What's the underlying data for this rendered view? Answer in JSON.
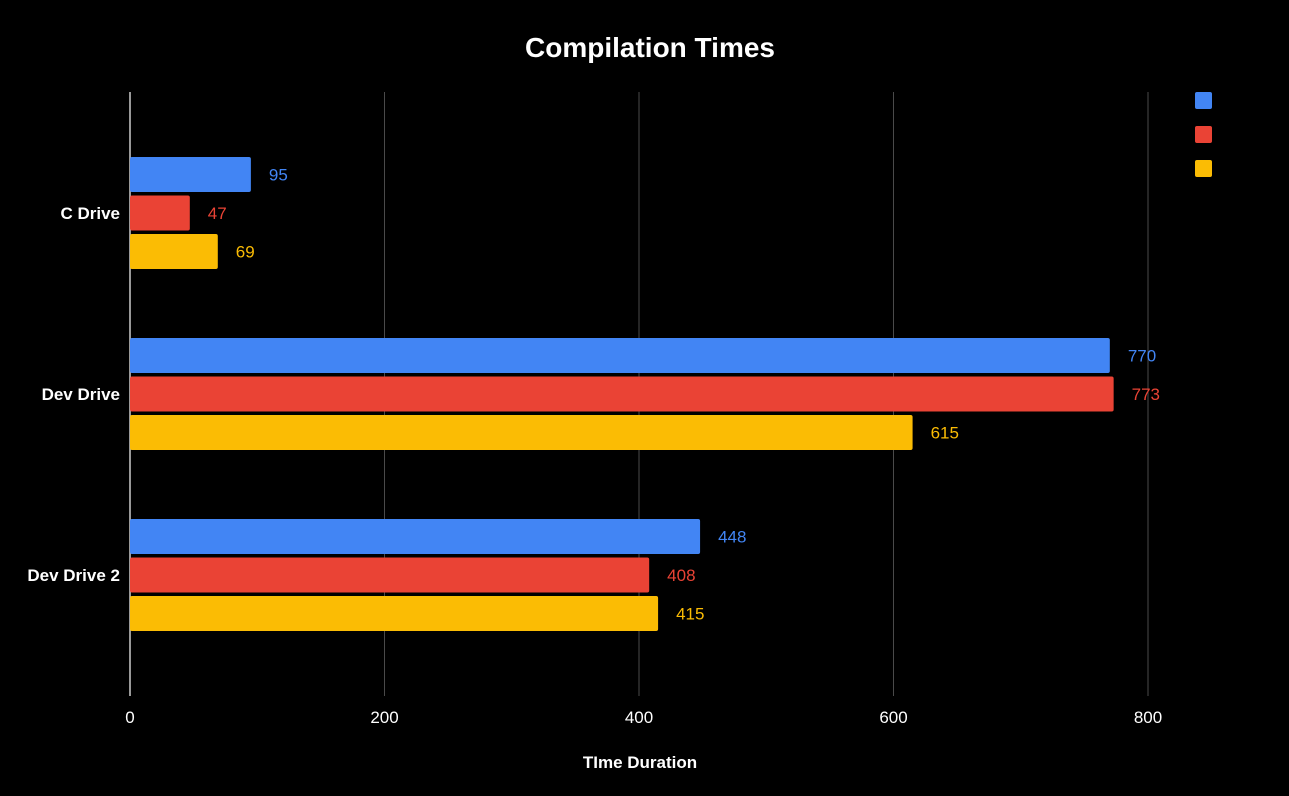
{
  "chart_data": {
    "type": "bar",
    "orientation": "horizontal",
    "title": "Compilation Times",
    "xlabel": "TIme Duration",
    "ylabel": "",
    "categories": [
      "C Drive",
      "Dev Drive",
      "Dev Drive 2"
    ],
    "series": [
      {
        "color": "#4285f4",
        "values": [
          95,
          770,
          448
        ]
      },
      {
        "color": "#ea4335",
        "values": [
          47,
          773,
          408
        ]
      },
      {
        "color": "#fbbc04",
        "values": [
          69,
          615,
          415
        ]
      }
    ],
    "xlim": [
      0,
      800
    ],
    "x_ticks": [
      "0",
      "200",
      "400",
      "600",
      "800"
    ],
    "grid": true,
    "legend": "top-right",
    "data_labels": true
  },
  "colors": {
    "background": "#000000",
    "text": "#ffffff",
    "grid": "#4a4a4a"
  }
}
